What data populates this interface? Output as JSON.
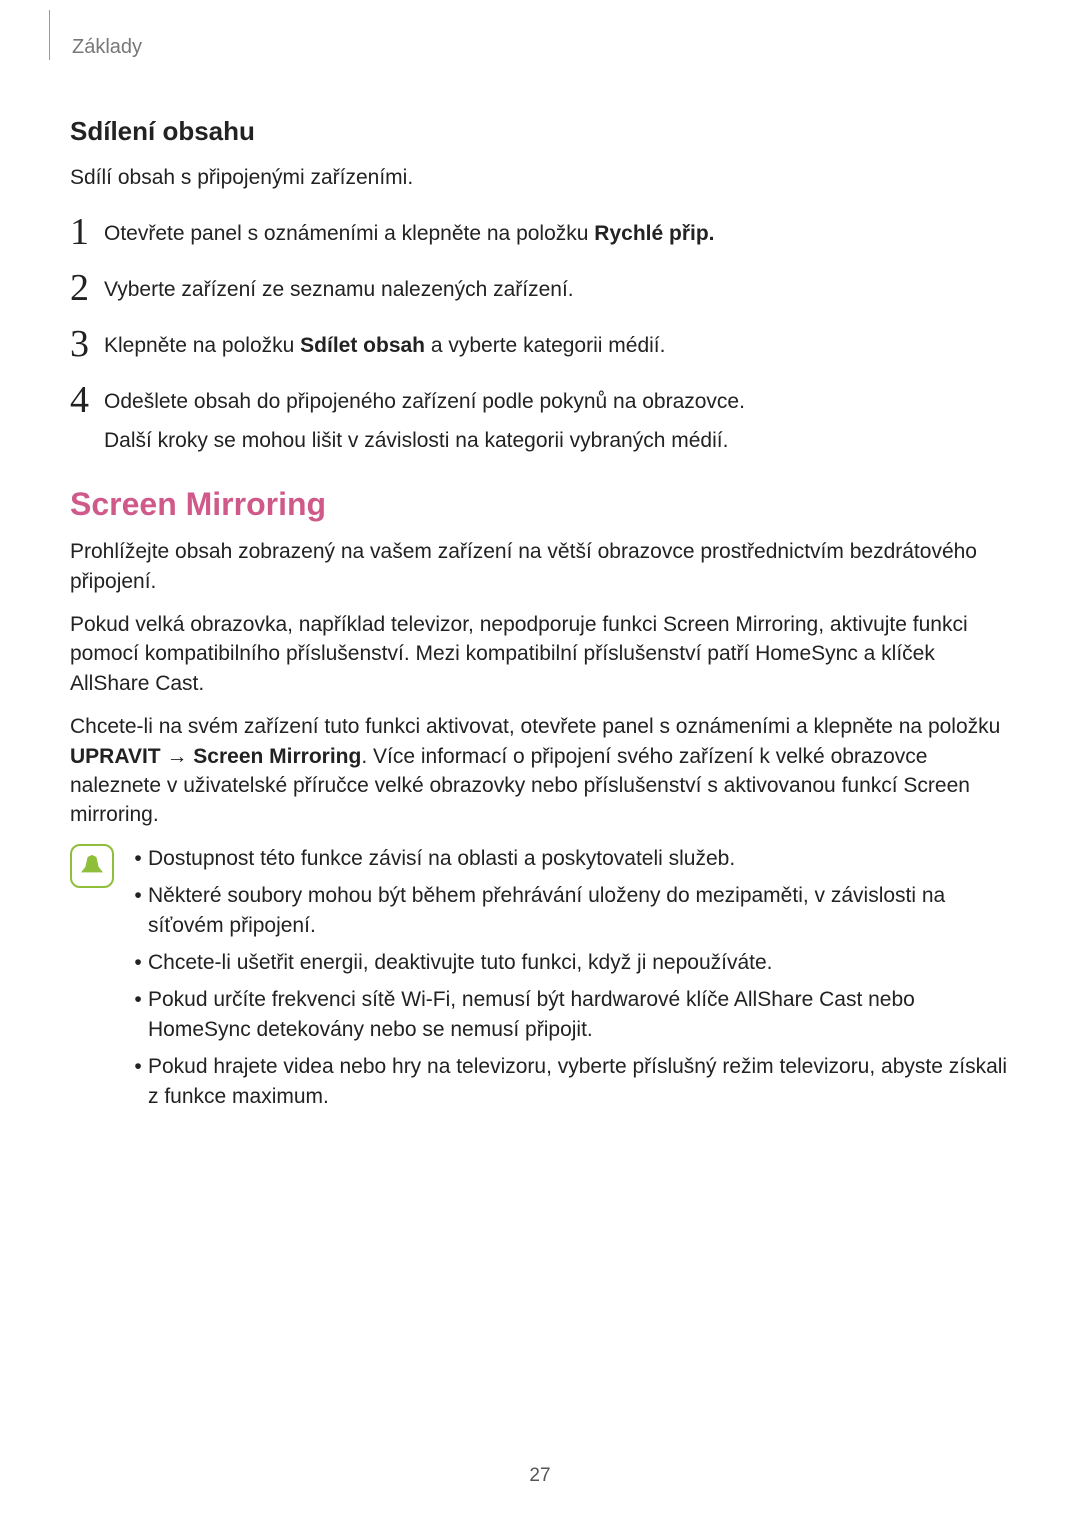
{
  "header": {
    "breadcrumb": "Základy"
  },
  "section1": {
    "title": "Sdílení obsahu",
    "intro": "Sdílí obsah s připojenými zařízeními.",
    "steps": [
      {
        "num": "1",
        "pre": "Otevřete panel s oznámeními a klepněte na položku ",
        "bold": "Rychlé přip."
      },
      {
        "num": "2",
        "pre": "Vyberte zařízení ze seznamu nalezených zařízení."
      },
      {
        "num": "3",
        "pre": "Klepněte na položku ",
        "bold": "Sdílet obsah",
        "post": " a vyberte kategorii médií."
      },
      {
        "num": "4",
        "pre": "Odešlete obsah do připojeného zařízení podle pokynů na obrazovce.",
        "cont": "Další kroky se mohou lišit v závislosti na kategorii vybraných médií."
      }
    ]
  },
  "section2": {
    "title": "Screen Mirroring",
    "p1": "Prohlížejte obsah zobrazený na vašem zařízení na větší obrazovce prostřednictvím bezdrátového připojení.",
    "p2": "Pokud velká obrazovka, například televizor, nepodporuje funkci Screen Mirroring, aktivujte funkci pomocí kompatibilního příslušenství. Mezi kompatibilní příslušenství patří HomeSync a klíček AllShare Cast.",
    "p3_a": "Chcete-li na svém zařízení tuto funkci aktivovat, otevřete panel s oznámeními a klepněte na položku ",
    "p3_bold1": "UPRAVIT",
    "p3_arrow": " → ",
    "p3_bold2": "Screen Mirroring",
    "p3_b": ". Více informací o připojení svého zařízení k velké obrazovce naleznete v uživatelské příručce velké obrazovky nebo příslušenství s aktivovanou funkcí Screen mirroring.",
    "bullets": [
      "Dostupnost této funkce závisí na oblasti a poskytovateli služeb.",
      "Některé soubory mohou být během přehrávání uloženy do mezipaměti, v závislosti na síťovém připojení.",
      "Chcete-li ušetřit energii, deaktivujte tuto funkci, když ji nepoužíváte.",
      "Pokud určíte frekvenci sítě Wi-Fi, nemusí být hardwarové klíče AllShare Cast nebo HomeSync detekovány nebo se nemusí připojit.",
      "Pokud hrajete videa nebo hry na televizoru, vyberte příslušný režim televizoru, abyste získali z funkce maximum."
    ]
  },
  "pageNumber": "27",
  "style": {
    "accent_color": "#cf5a8a",
    "note_icon_color": "#8fbf3a",
    "text_color": "#222222",
    "muted_color": "#777777"
  }
}
